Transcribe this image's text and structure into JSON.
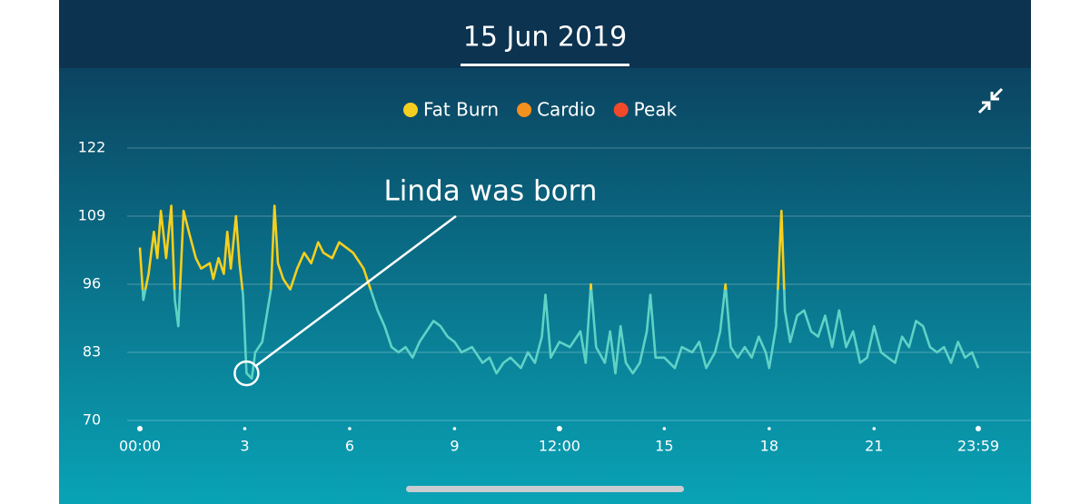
{
  "header": {
    "date": "15 Jun 2019"
  },
  "chart_data": {
    "type": "line",
    "legend": [
      {
        "name": "Fat Burn",
        "color": "#f5cf1f"
      },
      {
        "name": "Cardio",
        "color": "#f4901e"
      },
      {
        "name": "Peak",
        "color": "#f2492a"
      }
    ],
    "fat_burn_min": 95,
    "line_color": "#5fd2c6",
    "x": [
      0.0,
      0.1,
      0.25,
      0.4,
      0.5,
      0.6,
      0.75,
      0.9,
      1.0,
      1.1,
      1.25,
      1.4,
      1.6,
      1.75,
      2.0,
      2.1,
      2.25,
      2.4,
      2.5,
      2.6,
      2.75,
      2.85,
      2.95,
      3.05,
      3.2,
      3.3,
      3.5,
      3.6,
      3.75,
      3.85,
      3.95,
      4.1,
      4.3,
      4.5,
      4.7,
      4.9,
      5.1,
      5.25,
      5.5,
      5.7,
      5.9,
      6.1,
      6.4,
      6.6,
      6.8,
      7.0,
      7.2,
      7.4,
      7.6,
      7.8,
      8.0,
      8.2,
      8.4,
      8.6,
      8.8,
      9.0,
      9.2,
      9.5,
      9.8,
      10.0,
      10.2,
      10.4,
      10.6,
      10.9,
      11.1,
      11.3,
      11.5,
      11.6,
      11.75,
      12.0,
      12.3,
      12.6,
      12.75,
      12.9,
      13.05,
      13.3,
      13.45,
      13.6,
      13.75,
      13.9,
      14.1,
      14.3,
      14.5,
      14.6,
      14.75,
      15.0,
      15.3,
      15.5,
      15.8,
      16.0,
      16.2,
      16.45,
      16.6,
      16.75,
      16.9,
      17.1,
      17.3,
      17.5,
      17.7,
      17.9,
      18.0,
      18.2,
      18.35,
      18.45,
      18.6,
      18.8,
      19.0,
      19.2,
      19.4,
      19.6,
      19.8,
      20.0,
      20.2,
      20.4,
      20.6,
      20.8,
      21.0,
      21.2,
      21.4,
      21.6,
      21.8,
      22.0,
      22.2,
      22.4,
      22.6,
      22.8,
      23.0,
      23.2,
      23.4,
      23.6,
      23.8,
      23.98
    ],
    "values": [
      103,
      93,
      98,
      106,
      101,
      110,
      101,
      111,
      93,
      88,
      110,
      106,
      101,
      99,
      100,
      97,
      101,
      98,
      106,
      99,
      109,
      100,
      94,
      79,
      78,
      83,
      85,
      89,
      95,
      111,
      100,
      97,
      95,
      99,
      102,
      100,
      104,
      102,
      101,
      104,
      103,
      102,
      99,
      95,
      91,
      88,
      84,
      83,
      84,
      82,
      85,
      87,
      89,
      88,
      86,
      85,
      83,
      84,
      81,
      82,
      79,
      81,
      82,
      80,
      83,
      81,
      86,
      94,
      82,
      85,
      84,
      87,
      81,
      96,
      84,
      81,
      87,
      79,
      88,
      81,
      79,
      81,
      87,
      94,
      82,
      82,
      80,
      84,
      83,
      85,
      80,
      83,
      87,
      96,
      84,
      82,
      84,
      82,
      86,
      83,
      80,
      88,
      110,
      91,
      85,
      90,
      91,
      87,
      86,
      90,
      84,
      91,
      84,
      87,
      81,
      82,
      88,
      83,
      82,
      81,
      86,
      84,
      89,
      88,
      84,
      83,
      84,
      81,
      85,
      82,
      83,
      80
    ],
    "xlim": [
      0,
      23.98
    ],
    "xticks": [
      {
        "value": 0,
        "label": "00:00"
      },
      3,
      6,
      9,
      {
        "value": 12,
        "label": "12:00"
      },
      15,
      18,
      21,
      {
        "value": 23.98,
        "label": "23:59"
      }
    ],
    "ylim": [
      70,
      122
    ],
    "yticks": [
      70,
      83,
      96,
      109,
      122
    ],
    "grid": true,
    "annotation": {
      "text": "Linda was born",
      "x": 3.05,
      "y": 79
    }
  }
}
